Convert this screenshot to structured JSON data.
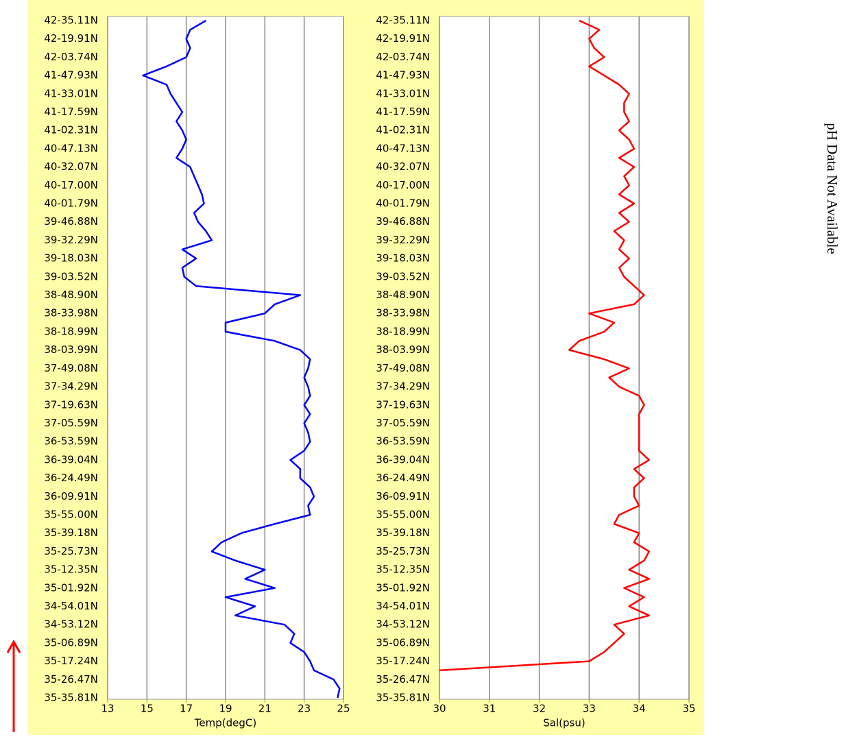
{
  "chart_data": [
    {
      "type": "line",
      "orientation": "vertical",
      "xlabel": "Temp(degC)",
      "color": "#0000ff",
      "grid": true,
      "xlim": [
        13,
        25
      ],
      "xticks": [
        13,
        15,
        17,
        19,
        21,
        23,
        25
      ],
      "categories": [
        "42-35.11N",
        null,
        "42-19.91N",
        null,
        "42-03.74N",
        null,
        "41-47.93N",
        null,
        "41-33.01N",
        null,
        "41-17.59N",
        null,
        "41-02.31N",
        null,
        "40-47.13N",
        null,
        "40-32.07N",
        null,
        "40-17.00N",
        null,
        "40-01.79N",
        null,
        "39-46.88N",
        null,
        "39-32.29N",
        null,
        "39-18.03N",
        null,
        "39-03.52N",
        null,
        "38-48.90N",
        null,
        "38-33.98N",
        null,
        "38-18.99N",
        null,
        "38-03.99N",
        null,
        "37-49.08N",
        null,
        "37-34.29N",
        null,
        "37-19.63N",
        null,
        "37-05.59N",
        null,
        "36-53.59N",
        null,
        "36-39.04N",
        null,
        "36-24.49N",
        null,
        "36-09.91N",
        null,
        "35-55.00N",
        null,
        "35-39.18N",
        null,
        "35-25.73N",
        null,
        "35-12.35N",
        null,
        "35-01.92N",
        null,
        "34-54.01N",
        null,
        "34-53.12N",
        null,
        "35-06.89N",
        null,
        "35-17.24N",
        null,
        "35-26.47N",
        null,
        "35-35.81N"
      ],
      "values": [
        18.0,
        17.2,
        17.0,
        17.2,
        17.0,
        16.0,
        14.8,
        16.0,
        16.2,
        16.5,
        16.8,
        16.5,
        16.8,
        17.0,
        16.8,
        16.5,
        17.2,
        17.4,
        17.6,
        17.8,
        17.9,
        17.4,
        17.6,
        18.0,
        18.3,
        16.8,
        17.5,
        16.8,
        16.9,
        17.5,
        22.8,
        21.5,
        21.0,
        19.0,
        19.0,
        21.5,
        22.8,
        23.3,
        23.2,
        23.0,
        23.2,
        23.3,
        23.0,
        23.3,
        23.0,
        23.2,
        23.3,
        23.0,
        22.3,
        22.8,
        22.8,
        23.3,
        23.5,
        23.2,
        23.3,
        21.5,
        19.8,
        18.8,
        18.3,
        19.5,
        21.0,
        20.0,
        21.5,
        19.0,
        20.5,
        19.5,
        22.0,
        22.5,
        22.3,
        23.0,
        23.3,
        23.5,
        24.5,
        24.8,
        24.7
      ]
    },
    {
      "type": "line",
      "orientation": "vertical",
      "xlabel": "Sal(psu)",
      "color": "#ff0000",
      "grid": true,
      "xlim": [
        30,
        35
      ],
      "xticks": [
        30,
        31,
        32,
        33,
        34,
        35
      ],
      "categories": [
        "42-35.11N",
        null,
        "42-19.91N",
        null,
        "42-03.74N",
        null,
        "41-47.93N",
        null,
        "41-33.01N",
        null,
        "41-17.59N",
        null,
        "41-02.31N",
        null,
        "40-47.13N",
        null,
        "40-32.07N",
        null,
        "40-17.00N",
        null,
        "40-01.79N",
        null,
        "39-46.88N",
        null,
        "39-32.29N",
        null,
        "39-18.03N",
        null,
        "39-03.52N",
        null,
        "38-48.90N",
        null,
        "38-33.98N",
        null,
        "38-18.99N",
        null,
        "38-03.99N",
        null,
        "37-49.08N",
        null,
        "37-34.29N",
        null,
        "37-19.63N",
        null,
        "37-05.59N",
        null,
        "36-53.59N",
        null,
        "36-39.04N",
        null,
        "36-24.49N",
        null,
        "36-09.91N",
        null,
        "35-55.00N",
        null,
        "35-39.18N",
        null,
        "35-25.73N",
        null,
        "35-12.35N",
        null,
        "35-01.92N",
        null,
        "34-54.01N",
        null,
        "34-53.12N",
        null,
        "35-06.89N",
        null,
        "35-17.24N",
        null,
        "35-26.47N",
        null,
        "35-35.81N"
      ],
      "values": [
        32.8,
        33.2,
        33.0,
        33.1,
        33.3,
        33.0,
        33.3,
        33.6,
        33.8,
        33.7,
        33.7,
        33.8,
        33.6,
        33.8,
        33.9,
        33.6,
        33.9,
        33.7,
        33.8,
        33.6,
        33.9,
        33.6,
        33.8,
        33.5,
        33.7,
        33.6,
        33.8,
        33.6,
        33.7,
        33.9,
        34.1,
        33.9,
        33.0,
        33.5,
        33.3,
        32.8,
        32.6,
        33.3,
        33.8,
        33.4,
        33.6,
        34.0,
        34.1,
        34.0,
        34.0,
        34.0,
        34.0,
        34.0,
        34.2,
        33.9,
        34.1,
        33.9,
        33.9,
        34.0,
        33.6,
        33.5,
        34.0,
        33.9,
        34.2,
        34.1,
        33.8,
        34.2,
        33.7,
        34.1,
        33.8,
        34.2,
        33.5,
        33.7,
        33.5,
        33.3,
        33.0,
        30.0,
        null,
        null,
        null
      ]
    }
  ],
  "ph_panel": {
    "text": "pH Data Not Available"
  }
}
